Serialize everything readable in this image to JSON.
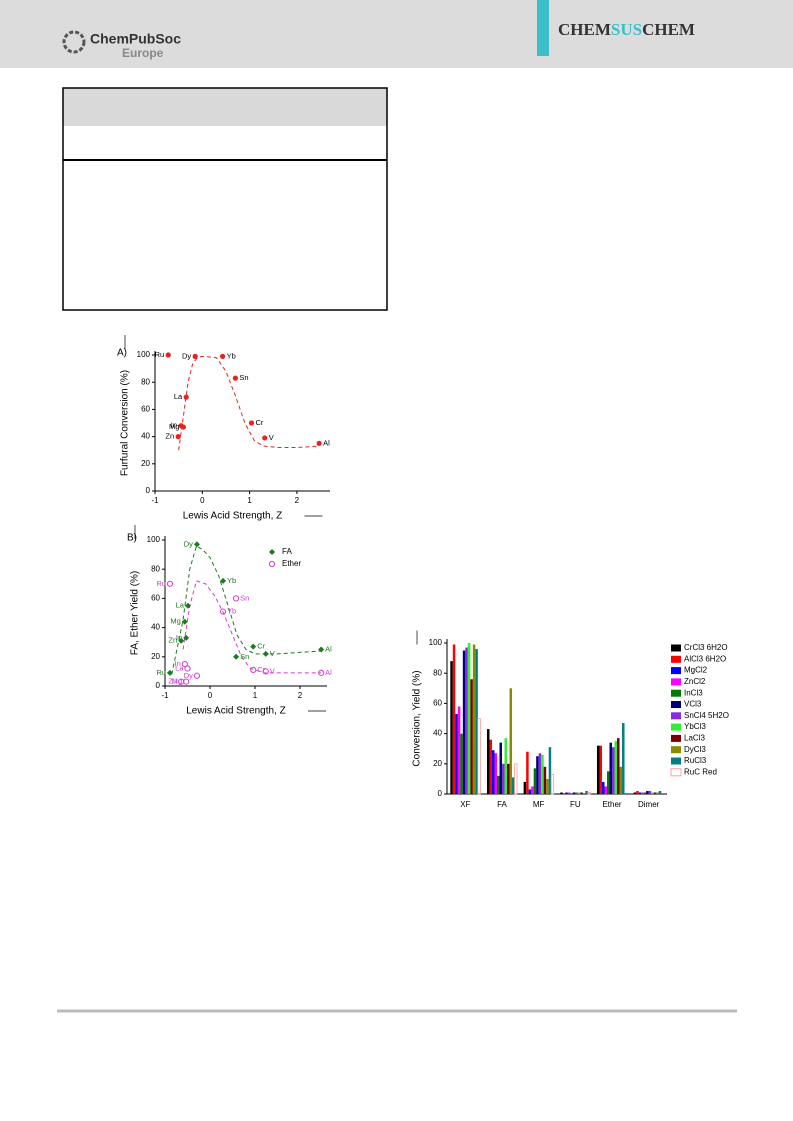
{
  "header": {
    "society": "ChemPubSoc",
    "region": "Europe",
    "journal": [
      "CHEM",
      "SUS",
      "CHEM"
    ]
  },
  "chart_data": [
    {
      "type": "scatter",
      "panel": "A)",
      "xlabel": "Lewis Acid Strength, Z",
      "ylabel": "Furfural Conversion (%)",
      "xlim": [
        -1,
        2.7
      ],
      "xticks": [
        -1,
        0,
        1,
        2
      ],
      "ylim": [
        0,
        100
      ],
      "yticks": [
        0,
        20,
        40,
        60,
        80,
        100
      ],
      "series": [
        {
          "color": "#e8231d",
          "marker": "circle",
          "x": [
            -0.72,
            -0.15,
            0.43,
            0.7,
            -0.34,
            -0.45,
            -0.4,
            -0.51,
            1.04,
            1.32,
            2.47
          ],
          "values": [
            100,
            99,
            99,
            83,
            69,
            48,
            47,
            40,
            50,
            39,
            35
          ],
          "labels": [
            "Ru",
            "Dy",
            "Yb",
            "Sn",
            "La",
            "In",
            "Mg",
            "Zn",
            "Cr",
            "V",
            "Al"
          ]
        }
      ],
      "fits": [
        {
          "color": "#e8231d",
          "x": [
            -0.5,
            -0.4,
            -0.3,
            -0.2,
            -0.1,
            0,
            0.3,
            0.5,
            0.7,
            0.9,
            1.1,
            1.3,
            1.6,
            2.0,
            2.47
          ],
          "values": [
            30,
            55,
            80,
            94,
            98,
            99,
            98,
            88,
            70,
            50,
            37,
            33,
            32,
            32,
            33
          ]
        }
      ]
    },
    {
      "type": "scatter",
      "panel": "B)",
      "xlabel": "Lewis Acid Strength, Z",
      "ylabel": "FA, Ether Yield (%)",
      "xlim": [
        -1,
        2.6
      ],
      "xticks": [
        -1,
        0,
        1,
        2
      ],
      "ylim": [
        0,
        100
      ],
      "yticks": [
        0,
        20,
        40,
        60,
        80,
        100
      ],
      "legend": "upper right",
      "series": [
        {
          "name": "FA",
          "color": "#1e7a1e",
          "marker": "diamond",
          "x": [
            -0.29,
            0.29,
            -0.49,
            -0.56,
            -0.53,
            -0.64,
            -0.89,
            0.58,
            0.96,
            1.24,
            2.47
          ],
          "values": [
            97,
            72,
            55,
            44,
            33,
            31,
            9,
            20,
            27,
            22,
            25
          ],
          "labels": [
            "Dy",
            "Yb",
            "La",
            "Mg",
            "In",
            "Zn",
            "Ru",
            "Sn",
            "Cr",
            "V",
            "Al"
          ]
        },
        {
          "name": "Ether",
          "color": "#d43bd4",
          "marker": "circle-open",
          "x": [
            -0.89,
            0.29,
            0.58,
            -0.56,
            -0.5,
            -0.29,
            -0.53,
            -0.64,
            0.96,
            1.24,
            2.47
          ],
          "values": [
            70,
            51,
            60,
            15,
            12,
            7,
            3,
            3,
            11,
            10,
            9
          ],
          "labels": [
            "Ru",
            "Yb",
            "Sn",
            "In",
            "La",
            "Dy",
            "Mg",
            "Zn",
            "Cr",
            "V",
            "Al"
          ]
        }
      ],
      "fits": [
        {
          "color": "#1e7a1e",
          "x": [
            -0.85,
            -0.6,
            -0.45,
            -0.3,
            -0.15,
            0,
            0.2,
            0.4,
            0.6,
            0.8,
            1.0,
            1.5,
            2.47
          ],
          "values": [
            8,
            45,
            80,
            96,
            93,
            88,
            75,
            55,
            35,
            25,
            22,
            22,
            24
          ]
        },
        {
          "color": "#d43bd4",
          "x": [
            -0.6,
            -0.45,
            -0.3,
            -0.1,
            0.1,
            0.3,
            0.5,
            0.7,
            0.9,
            1.2,
            2.47
          ],
          "values": [
            25,
            55,
            72,
            70,
            62,
            50,
            35,
            20,
            12,
            9,
            9
          ]
        }
      ]
    },
    {
      "type": "bar",
      "ylabel": "Conversion, Yield (%)",
      "categories": [
        "XF",
        "FA",
        "MF",
        "FU",
        "Ether",
        "Dimer"
      ],
      "ylim": [
        0,
        100
      ],
      "yticks": [
        0,
        20,
        40,
        60,
        80,
        100
      ],
      "legend": "right",
      "series": [
        {
          "name": "CrCl3 6H2O",
          "color": "#000000",
          "values": [
            88,
            43,
            8,
            1,
            32,
            1
          ]
        },
        {
          "name": "AlCl3 6H2O",
          "color": "#ff0000",
          "values": [
            99,
            36,
            28,
            0,
            32,
            2
          ]
        },
        {
          "name": "MgCl2",
          "color": "#0000ff",
          "values": [
            53,
            29,
            3,
            1,
            8,
            1
          ]
        },
        {
          "name": "ZnCl2",
          "color": "#ff00ff",
          "values": [
            58,
            27,
            5,
            1,
            5,
            1
          ]
        },
        {
          "name": "InCl3",
          "color": "#007a00",
          "values": [
            40,
            12,
            17,
            0,
            15,
            1
          ]
        },
        {
          "name": "VCl3",
          "color": "#00007a",
          "values": [
            95,
            34,
            25,
            1,
            34,
            2
          ]
        },
        {
          "name": "SnCl4 5H2O",
          "color": "#8a2be2",
          "values": [
            97,
            20,
            27,
            1,
            31,
            2
          ]
        },
        {
          "name": "YbCl3",
          "color": "#33ee33",
          "values": [
            100,
            37,
            26,
            1,
            35,
            1
          ]
        },
        {
          "name": "LaCl3",
          "color": "#7a0000",
          "values": [
            76,
            20,
            18,
            1,
            37,
            1
          ]
        },
        {
          "name": "DyCl3",
          "color": "#8a8a00",
          "values": [
            99,
            70,
            10,
            0,
            18,
            1
          ]
        },
        {
          "name": "RuCl3",
          "color": "#008080",
          "values": [
            96,
            11,
            31,
            2,
            47,
            2
          ]
        },
        {
          "name": "RuC Red",
          "color": "#f4a0a0",
          "fill": "none",
          "values": [
            50,
            20,
            13,
            1,
            0,
            0
          ]
        }
      ]
    }
  ]
}
